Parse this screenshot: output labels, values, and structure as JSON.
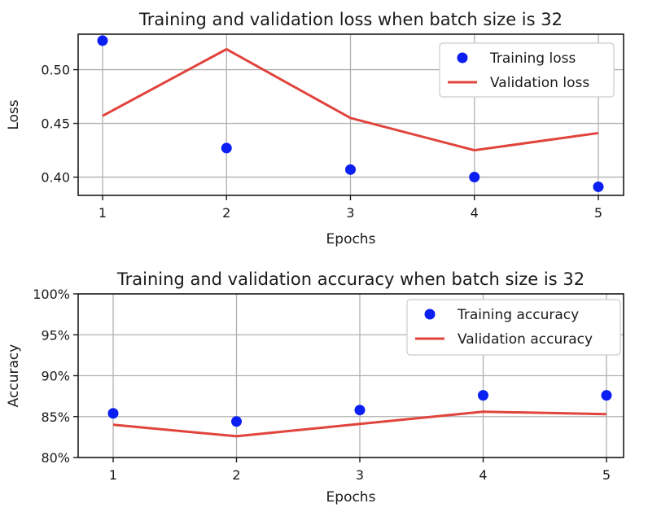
{
  "chart_data": [
    {
      "type": "line",
      "title": "Training and validation loss when batch size is 32",
      "xlabel": "Epochs",
      "ylabel": "Loss",
      "x": [
        1,
        2,
        3,
        4,
        5
      ],
      "xticks": [
        "1",
        "2",
        "3",
        "4",
        "5"
      ],
      "ylim": [
        0.383,
        0.533
      ],
      "yticks": [
        0.4,
        0.45,
        0.5
      ],
      "ytick_labels": [
        "0.40",
        "0.45",
        "0.50"
      ],
      "grid": true,
      "legend_position": "top-right",
      "series": [
        {
          "name": "Training loss",
          "style": "points",
          "color": "#0b1ff2",
          "values": [
            0.527,
            0.427,
            0.407,
            0.4,
            0.391
          ]
        },
        {
          "name": "Validation loss",
          "style": "line",
          "color": "#e0443c",
          "values": [
            0.457,
            0.519,
            0.455,
            0.425,
            0.441
          ]
        }
      ]
    },
    {
      "type": "line",
      "title": "Training and validation accuracy when batch size is 32",
      "xlabel": "Epochs",
      "ylabel": "Accuracy",
      "x": [
        1,
        2,
        3,
        4,
        5
      ],
      "xticks": [
        "1",
        "2",
        "3",
        "4",
        "5"
      ],
      "ylim": [
        80,
        100
      ],
      "yticks": [
        80,
        85,
        90,
        95,
        100
      ],
      "ytick_labels": [
        "80%",
        "85%",
        "90%",
        "95%",
        "100%"
      ],
      "grid": true,
      "legend_position": "top-right",
      "series": [
        {
          "name": "Training accuracy",
          "style": "points",
          "color": "#0b1ff2",
          "values": [
            85.4,
            84.4,
            85.8,
            87.6,
            87.6
          ]
        },
        {
          "name": "Validation accuracy",
          "style": "line",
          "color": "#e0443c",
          "values": [
            84.0,
            82.6,
            84.1,
            85.6,
            85.3
          ]
        }
      ]
    }
  ]
}
